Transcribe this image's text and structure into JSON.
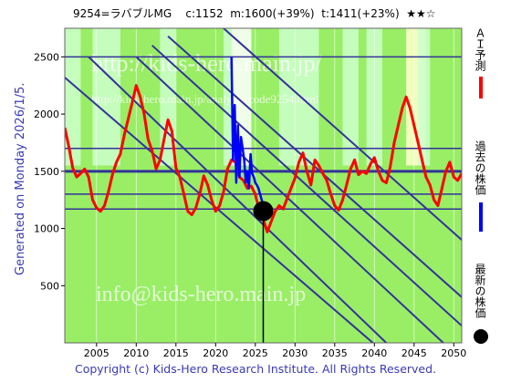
{
  "header": {
    "code_name": "9254=ラバブルMG",
    "current": "c:1152",
    "median": "m:1600(+39%)",
    "target": "t:1411(+23%)",
    "rating": "★★☆"
  },
  "generated_text": "Generated on Monday 2026/1/5.",
  "footer_text": "Copyright (c) Kids-Hero Research Institute. All Rights Reserved.",
  "watermarks": {
    "site": "http://kids-hero.main.jp/",
    "analysis": "http://kids-hero.main.jp/analysis/code9254.html",
    "email": "info@kids-hero.main.jp"
  },
  "legend": {
    "forecast": "ＡＩ予測",
    "past": "過去の株価",
    "latest": "最新の株価"
  },
  "colors": {
    "forecast": "#ff0000",
    "past": "#0000ff",
    "latest": "#000000",
    "trend": "#333399",
    "bg_light_green": "#ccffcc",
    "bg_green": "#99ee66",
    "bg_yellow": "#ffffcc"
  },
  "chart_data": {
    "type": "line",
    "xlim": [
      2001,
      2051
    ],
    "ylim": [
      0,
      2750
    ],
    "x_ticks": [
      2005,
      2010,
      2015,
      2020,
      2025,
      2030,
      2035,
      2040,
      2045,
      2050
    ],
    "y_ticks": [
      500,
      1000,
      1500,
      2000,
      2500
    ],
    "horizontal_levels": [
      2500,
      1700,
      1500,
      1300,
      1170
    ],
    "series": [
      {
        "key": "forecast",
        "x": [
          2001.0,
          2001.5,
          2002.0,
          2002.5,
          2003.0,
          2003.5,
          2004.0,
          2004.5,
          2005.0,
          2005.5,
          2006.0,
          2006.5,
          2007.0,
          2007.5,
          2008.0,
          2008.5,
          2009.0,
          2009.5,
          2010.0,
          2010.5,
          2011.0,
          2011.5,
          2012.0,
          2012.5,
          2013.0,
          2013.5,
          2014.0,
          2014.5,
          2015.0,
          2015.5,
          2016.0,
          2016.5,
          2017.0,
          2017.5,
          2018.0,
          2018.5,
          2019.0,
          2019.5,
          2020.0,
          2020.5,
          2021.0,
          2021.5,
          2022.0,
          2022.5,
          2023.0,
          2023.5,
          2024.0,
          2024.5,
          2025.0,
          2025.5,
          2026.0,
          2026.5,
          2027.0,
          2027.5,
          2028.0,
          2028.5,
          2029.0,
          2029.5,
          2030.0,
          2030.5,
          2031.0,
          2031.5,
          2032.0,
          2032.5,
          2033.0,
          2033.5,
          2034.0,
          2034.5,
          2035.0,
          2035.5,
          2036.0,
          2036.5,
          2037.0,
          2037.5,
          2038.0,
          2038.5,
          2039.0,
          2039.5,
          2040.0,
          2040.5,
          2041.0,
          2041.5,
          2042.0,
          2042.5,
          2043.0,
          2043.5,
          2044.0,
          2044.5,
          2045.0,
          2045.5,
          2046.0,
          2046.5,
          2047.0,
          2047.5,
          2048.0,
          2048.5,
          2049.0,
          2049.5,
          2050.0,
          2050.5,
          2051.0
        ],
        "values": [
          1880,
          1720,
          1530,
          1450,
          1480,
          1520,
          1450,
          1250,
          1180,
          1150,
          1200,
          1320,
          1470,
          1580,
          1650,
          1820,
          1960,
          2100,
          2250,
          2150,
          2000,
          1780,
          1680,
          1520,
          1600,
          1780,
          1950,
          1850,
          1530,
          1450,
          1300,
          1150,
          1120,
          1180,
          1300,
          1460,
          1380,
          1250,
          1150,
          1200,
          1320,
          1520,
          1600,
          1580,
          1450,
          1420,
          1350,
          1370,
          1300,
          1150,
          1080,
          970,
          1060,
          1150,
          1200,
          1170,
          1260,
          1350,
          1440,
          1580,
          1660,
          1500,
          1380,
          1600,
          1550,
          1480,
          1420,
          1300,
          1200,
          1160,
          1250,
          1380,
          1520,
          1600,
          1470,
          1500,
          1480,
          1560,
          1620,
          1500,
          1420,
          1400,
          1540,
          1750,
          1900,
          2050,
          2150,
          2050,
          1900,
          1750,
          1600,
          1450,
          1380,
          1250,
          1200,
          1350,
          1500,
          1580,
          1450,
          1420,
          1480
        ]
      },
      {
        "key": "past",
        "x": [
          2022.0,
          2022.2,
          2022.4,
          2022.6,
          2022.8,
          2023.0,
          2023.2,
          2023.4,
          2023.6,
          2023.8,
          2024.0,
          2024.2,
          2024.4,
          2024.6,
          2024.8,
          2025.0,
          2025.2,
          2025.4,
          2025.6,
          2025.8,
          2026.0
        ],
        "values": [
          2500,
          1600,
          2080,
          1400,
          1900,
          1450,
          1800,
          1700,
          1600,
          1400,
          1500,
          1350,
          1650,
          1480,
          1450,
          1400,
          1380,
          1350,
          1300,
          1250,
          1200
        ]
      },
      {
        "key": "latest",
        "x": [
          2026.0
        ],
        "values": [
          1152
        ]
      }
    ]
  }
}
